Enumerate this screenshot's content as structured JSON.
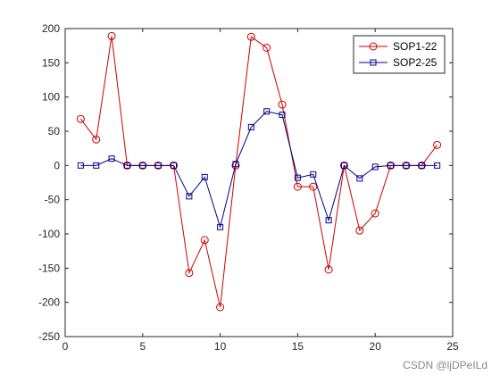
{
  "chart_data": {
    "type": "line",
    "title": "",
    "xlabel": "",
    "ylabel": "",
    "xlim": [
      0,
      25
    ],
    "ylim": [
      -250,
      200
    ],
    "xticks": [
      0,
      5,
      10,
      15,
      20,
      25
    ],
    "yticks": [
      -250,
      -200,
      -150,
      -100,
      -50,
      0,
      50,
      100,
      150,
      200
    ],
    "grid": false,
    "legend_position": "top-right",
    "x": [
      1,
      2,
      3,
      4,
      5,
      6,
      7,
      8,
      9,
      10,
      11,
      12,
      13,
      14,
      15,
      16,
      17,
      18,
      19,
      20,
      21,
      22,
      23,
      24
    ],
    "series": [
      {
        "name": "SOP1-22",
        "color": "#cc0000",
        "marker": "circle",
        "values": [
          68,
          38,
          189,
          0,
          0,
          0,
          0,
          -157,
          -109,
          -207,
          0,
          188,
          172,
          89,
          -31,
          -31,
          -152,
          0,
          -95,
          -70,
          0,
          0,
          0,
          30
        ]
      },
      {
        "name": "SOP2-25",
        "color": "#00008b",
        "marker": "square",
        "values": [
          0,
          0,
          10,
          0,
          0,
          0,
          0,
          -45,
          -17,
          -90,
          2,
          56,
          79,
          74,
          -18,
          -13,
          -80,
          0,
          -19,
          -2,
          0,
          0,
          0,
          0
        ]
      }
    ]
  },
  "watermark": "CSDN @ljDPeILd"
}
